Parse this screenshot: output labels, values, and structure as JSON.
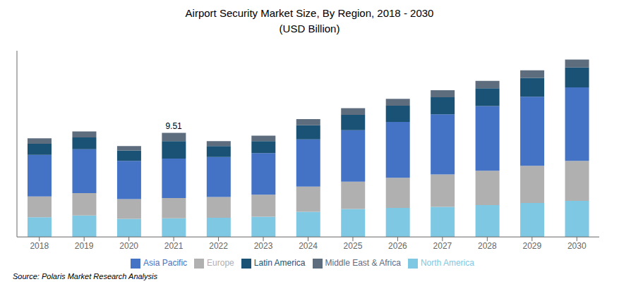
{
  "chart_data": {
    "type": "bar",
    "stacked": true,
    "title": "Airport Security Market Size, By Region, 2018 - 2030",
    "subtitle": "(USD Billion)",
    "source": "Source: Polaris  Market Research Analysis",
    "categories": [
      2018,
      2019,
      2020,
      2021,
      2022,
      2023,
      2024,
      2025,
      2026,
      2027,
      2028,
      2029,
      2030
    ],
    "series": [
      {
        "name": "North America",
        "color": "#7EC8E3",
        "values": [
          1.8,
          1.95,
          1.65,
          1.7,
          1.75,
          1.85,
          2.3,
          2.55,
          2.65,
          2.75,
          2.9,
          3.1,
          3.3
        ]
      },
      {
        "name": "Europe",
        "color": "#B0B0B0",
        "values": [
          1.9,
          2.05,
          1.8,
          1.85,
          1.9,
          2.0,
          2.3,
          2.5,
          2.75,
          2.95,
          3.15,
          3.4,
          3.65
        ]
      },
      {
        "name": "Asia Pacific",
        "color": "#4472C4",
        "values": [
          3.8,
          4.0,
          3.5,
          3.6,
          3.65,
          3.8,
          4.3,
          4.7,
          5.1,
          5.5,
          5.9,
          6.3,
          6.7
        ]
      },
      {
        "name": "Latin America",
        "color": "#1A5276",
        "values": [
          1.0,
          1.08,
          0.95,
          1.6,
          1.0,
          1.1,
          1.3,
          1.4,
          1.48,
          1.55,
          1.63,
          1.72,
          1.82
        ]
      },
      {
        "name": "Middle East & Africa",
        "color": "#5D6D7E",
        "values": [
          0.5,
          0.55,
          0.4,
          0.76,
          0.45,
          0.5,
          0.55,
          0.6,
          0.62,
          0.65,
          0.67,
          0.7,
          0.73
        ]
      }
    ],
    "annotations": [
      {
        "text": "9.51",
        "x": 2021,
        "y": 9.51
      }
    ],
    "ylim": [
      0,
      17
    ],
    "tick_labels": "x",
    "grid": false,
    "legend": "bottom"
  }
}
